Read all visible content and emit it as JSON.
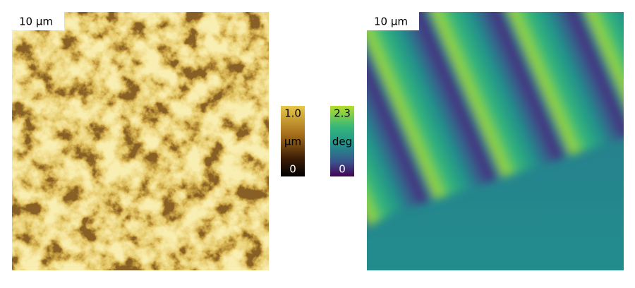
{
  "panels": [
    {
      "scale_label": "10 μm"
    },
    {
      "scale_label": "10 μm"
    }
  ],
  "colorbars": [
    {
      "max": "1.0",
      "unit": "μm",
      "min": "0"
    },
    {
      "max": "2.3",
      "unit": "deg",
      "min": "0"
    }
  ]
}
